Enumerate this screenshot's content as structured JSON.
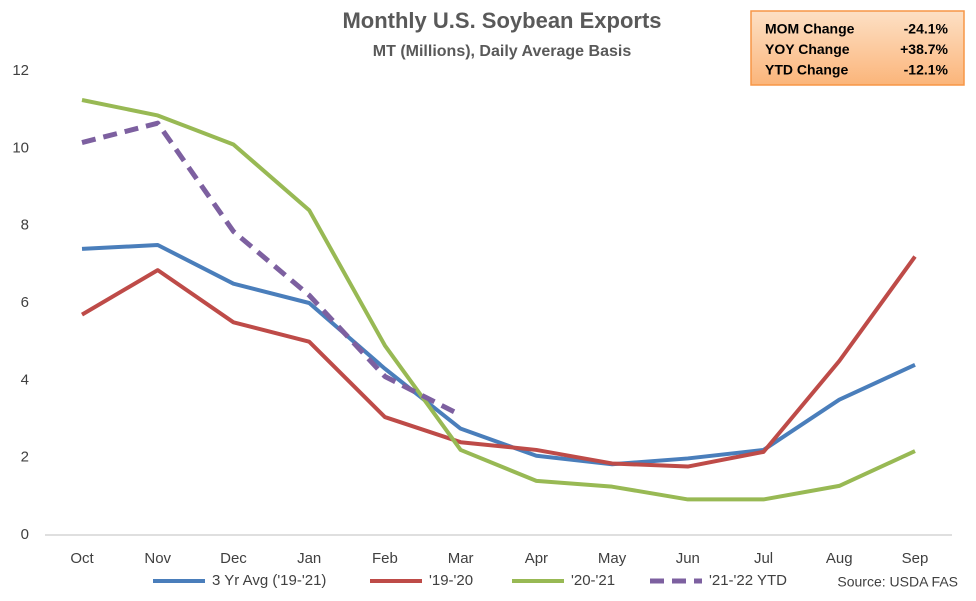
{
  "chart_data": {
    "type": "line",
    "title": "Monthly U.S. Soybean Exports",
    "subtitle": "MT (Millions), Daily Average Basis",
    "categories": [
      "Oct",
      "Nov",
      "Dec",
      "Jan",
      "Feb",
      "Mar",
      "Apr",
      "May",
      "Jun",
      "Jul",
      "Aug",
      "Sep"
    ],
    "series": [
      {
        "name": "3 Yr Avg ('19-'21)",
        "color": "#4a7ebb",
        "values": [
          7.4,
          7.5,
          6.5,
          6.0,
          4.3,
          2.75,
          2.05,
          1.83,
          1.98,
          2.2,
          3.5,
          4.4
        ]
      },
      {
        "name": "'19-'20",
        "color": "#be4b48",
        "values": [
          5.7,
          6.85,
          5.5,
          5.0,
          3.05,
          2.4,
          2.2,
          1.85,
          1.77,
          2.15,
          4.5,
          7.2
        ]
      },
      {
        "name": "'20-'21",
        "color": "#98b954",
        "values": [
          11.25,
          10.85,
          10.1,
          8.4,
          4.9,
          2.2,
          1.4,
          1.25,
          0.92,
          0.92,
          1.27,
          2.17
        ]
      },
      {
        "name": "'21-'22 YTD",
        "color": "#7d60a0",
        "dash": true,
        "values": [
          10.15,
          10.65,
          7.85,
          6.2,
          4.1,
          3.1,
          null,
          null,
          null,
          null,
          null,
          null
        ]
      }
    ],
    "ylim": [
      0,
      12
    ],
    "yticks": [
      0,
      2,
      4,
      6,
      8,
      10,
      12
    ],
    "grid": false,
    "legend": "bottom",
    "source": "Source: USDA FAS",
    "info_box": [
      {
        "label": "MOM Change",
        "value": "-24.1%"
      },
      {
        "label": "YOY Change",
        "value": "+38.7%"
      },
      {
        "label": "YTD Change",
        "value": "-12.1%"
      }
    ]
  }
}
